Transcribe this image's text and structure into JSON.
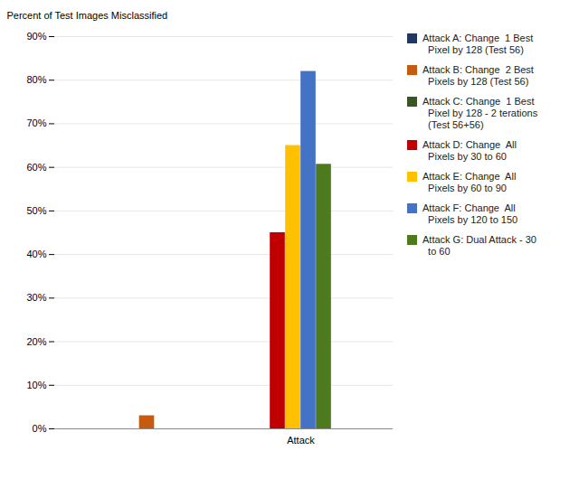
{
  "chart_data": {
    "type": "bar",
    "categories": [
      null,
      "Attack"
    ],
    "ylabel": "Percent of Test Images Misclassified",
    "ylim": [
      0,
      0.9
    ],
    "yticks": [
      {
        "value": 0.0,
        "label": "0%"
      },
      {
        "value": 0.1,
        "label": "10%"
      },
      {
        "value": 0.2,
        "label": "20%"
      },
      {
        "value": 0.3,
        "label": "30%"
      },
      {
        "value": 0.4,
        "label": "40%"
      },
      {
        "value": 0.5,
        "label": "50%"
      },
      {
        "value": 0.6,
        "label": "60%"
      },
      {
        "value": 0.7,
        "label": "70%"
      },
      {
        "value": 0.8,
        "label": "80%"
      },
      {
        "value": 0.9,
        "label": "90%"
      }
    ],
    "grid": true,
    "legend": "right",
    "series": [
      {
        "name": "Attack A: Change  1 Best\n  Pixel by 128 (Test 56)",
        "color": "#1F3864",
        "values": [
          0.0,
          0.0
        ]
      },
      {
        "name": "Attack B: Change  2 Best\n  Pixels by 128 (Test 56)",
        "color": "#C55A11",
        "values": [
          0.03,
          0.0
        ]
      },
      {
        "name": "Attack C: Change  1 Best\n  Pixel by 128 - 2 terations\n  (Test 56+56)",
        "color": "#375623",
        "values": [
          0.0,
          0.0
        ]
      },
      {
        "name": "Attack D: Change  All\n  Pixels by 30 to 60",
        "color": "#C00000",
        "values": [
          0.0,
          0.45
        ]
      },
      {
        "name": "Attack E: Change  All\n  Pixels by 60 to 90",
        "color": "#FFC000",
        "values": [
          0.0,
          0.65
        ]
      },
      {
        "name": "Attack F: Change  All\n  Pixels by 120 to 150",
        "color": "#4472C4",
        "values": [
          0.0,
          0.82
        ]
      },
      {
        "name": "Attack G: Dual Attack - 30\n  to 60",
        "color": "#4E7A1E",
        "values": [
          0.0,
          0.607
        ]
      }
    ]
  }
}
